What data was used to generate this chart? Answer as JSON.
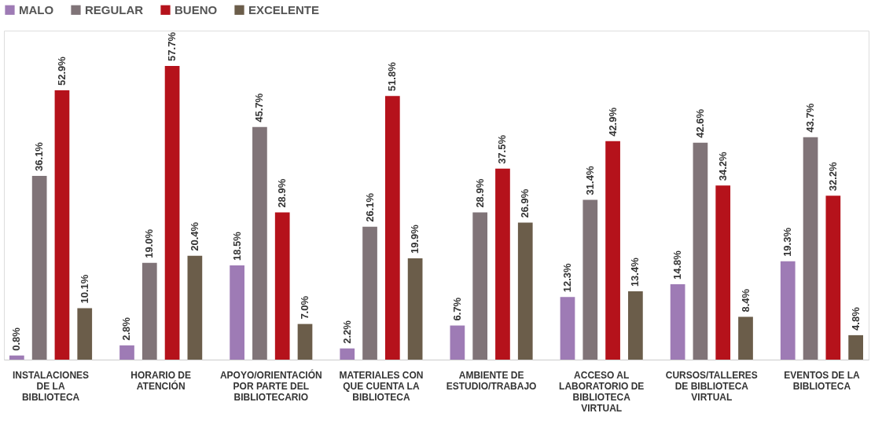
{
  "chart_data": {
    "type": "bar",
    "categories": [
      "INSTALACIONES DE LA BIBLIOTECA",
      "HORARIO DE ATENCIÓN",
      "APOYO/ORIENTACIÓN POR PARTE DEL BIBLIOTECARIO",
      "MATERIALES CON QUE CUENTA LA BIBLIOTECA",
      "AMBIENTE DE ESTUDIO/TRABAJO",
      "ACCESO AL LABORATORIO DE BIBLIOTECA VIRTUAL",
      "CURSOS/TALLERES DE BIBLIOTECA VIRTUAL",
      "EVENTOS DE LA BIBLIOTECA"
    ],
    "series": [
      {
        "name": "MALO",
        "color": "#9e7bb5",
        "values": [
          0.8,
          2.8,
          18.5,
          2.2,
          6.7,
          12.3,
          14.8,
          19.3
        ],
        "value_labels": [
          "0.8%",
          "2.8%",
          "18.5%",
          "2.2%",
          "6.7%",
          "12.3%",
          "14.8%",
          "19.3%"
        ]
      },
      {
        "name": "REGULAR",
        "color": "#807478",
        "values": [
          36.1,
          19.0,
          45.7,
          26.1,
          28.9,
          31.4,
          42.6,
          43.7
        ],
        "value_labels": [
          "36.1%",
          "19.0%",
          "45.7%",
          "26.1%",
          "28.9%",
          "31.4%",
          "42.6%",
          "43.7%"
        ]
      },
      {
        "name": "BUENO",
        "color": "#b5121b",
        "values": [
          52.9,
          57.7,
          28.9,
          51.8,
          37.5,
          42.9,
          34.2,
          32.2
        ],
        "value_labels": [
          "52.9%",
          "57.7%",
          "28.9%",
          "51.8%",
          "37.5%",
          "42.9%",
          "34.2%",
          "32.2%"
        ]
      },
      {
        "name": "EXCELENTE",
        "color": "#6b5d4a",
        "values": [
          10.1,
          20.4,
          7.0,
          19.9,
          26.9,
          13.4,
          8.4,
          4.8
        ],
        "value_labels": [
          "10.1%",
          "20.4%",
          "7.0%",
          "19.9%",
          "26.9%",
          "13.4%",
          "8.4%",
          "4.8%"
        ]
      }
    ],
    "legend": "top",
    "grid": false
  }
}
